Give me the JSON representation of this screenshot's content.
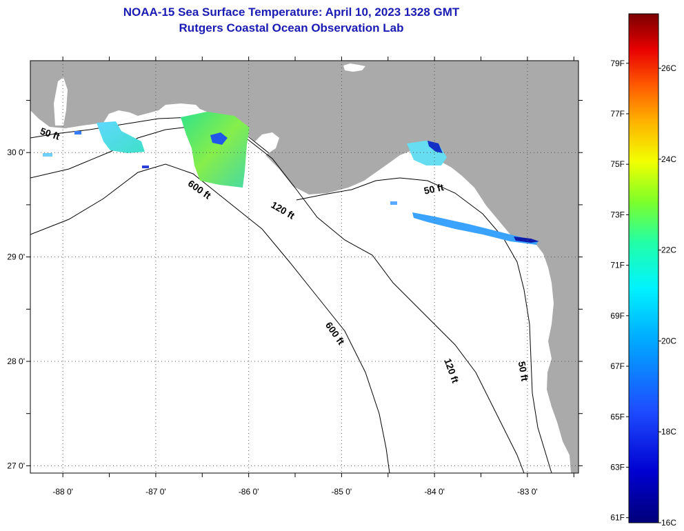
{
  "title": {
    "line1": "NOAA-15 Sea Surface Temperature:  April 10, 2023 1328 GMT",
    "line2": "Rutgers Coastal Ocean Observation Lab"
  },
  "map": {
    "lon_range": [
      -88.35,
      -82.45
    ],
    "lat_range": [
      26.93,
      30.88
    ],
    "lon_ticks": [
      {
        "value": -88,
        "label": "-88 0'"
      },
      {
        "value": -87,
        "label": "-87 0'"
      },
      {
        "value": -86,
        "label": "-86 0'"
      },
      {
        "value": -85,
        "label": "-85 0'"
      },
      {
        "value": -84,
        "label": "-84 0'"
      },
      {
        "value": -83,
        "label": "-83 0'"
      }
    ],
    "lat_ticks": [
      {
        "value": 30,
        "label": "30 0'"
      },
      {
        "value": 29,
        "label": "29 0'"
      },
      {
        "value": 28,
        "label": "28 0'"
      },
      {
        "value": 27,
        "label": "27 0'"
      }
    ],
    "colors": {
      "land": "#aaaaaa",
      "water": "#ffffff",
      "contour": "#000000",
      "grid": "#555555"
    },
    "isobaths": [
      {
        "label": "50 ft",
        "lon": -88.15,
        "lat": 30.15,
        "angle": 18
      },
      {
        "label": "600 ft",
        "lon": -86.55,
        "lat": 29.62,
        "angle": 35
      },
      {
        "label": "120 ft",
        "lon": -85.65,
        "lat": 29.42,
        "angle": 30
      },
      {
        "label": "50 ft",
        "lon": -84.0,
        "lat": 29.62,
        "angle": -12
      },
      {
        "label": "600 ft",
        "lon": -85.1,
        "lat": 28.25,
        "angle": 55
      },
      {
        "label": "120 ft",
        "lon": -83.85,
        "lat": 27.9,
        "angle": 70
      },
      {
        "label": "50 ft",
        "lon": -83.08,
        "lat": 27.9,
        "angle": 80
      }
    ]
  },
  "colorbar": {
    "min_c": 16,
    "max_c": 27.2,
    "fahrenheit_labels": [
      "79F",
      "77F",
      "75F",
      "73F",
      "71F",
      "69F",
      "67F",
      "65F",
      "63F",
      "61F"
    ],
    "fahrenheit_values": [
      79,
      77,
      75,
      73,
      71,
      69,
      67,
      65,
      63,
      61
    ],
    "celsius_labels": [
      "26C",
      "24C",
      "22C",
      "20C",
      "18C",
      "16C"
    ],
    "celsius_values": [
      26,
      24,
      22,
      20,
      18,
      16
    ]
  }
}
